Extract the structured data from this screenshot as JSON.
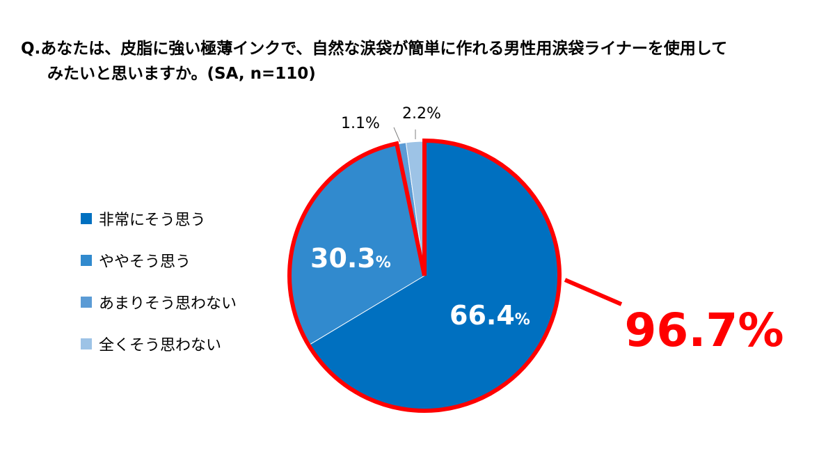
{
  "title": {
    "line1": "Q.あなたは、皮脂に強い極薄インクで、自然な涙袋が簡単に作れる男性用涙袋ライナーを使用して",
    "line2": "みたいと思いますか。(SA, n=110)"
  },
  "callout": {
    "label": "96.7%",
    "color": "#ff0000"
  },
  "chart_data": {
    "type": "pie",
    "title": "Q.あなたは、皮脂に強い極薄インクで、自然な涙袋が簡単に作れる男性用涙袋ライナーを使用してみたいと思いますか。(SA, n=110)",
    "unit": "%",
    "start": "12 o'clock, clockwise",
    "legend_position": "left",
    "slices": [
      {
        "label": "非常にそう思う",
        "value": 66.4,
        "value_label": "66.4",
        "color": "#0070c0"
      },
      {
        "label": "ややそう思う",
        "value": 30.3,
        "value_label": "30.3",
        "color": "#318ace"
      },
      {
        "label": "あまりそう思わない",
        "value": 1.1,
        "value_label": "1.1%",
        "color": "#5b9bd5"
      },
      {
        "label": "全くそう思わない",
        "value": 2.2,
        "value_label": "2.2%",
        "color": "#9dc3e6"
      }
    ]
  }
}
